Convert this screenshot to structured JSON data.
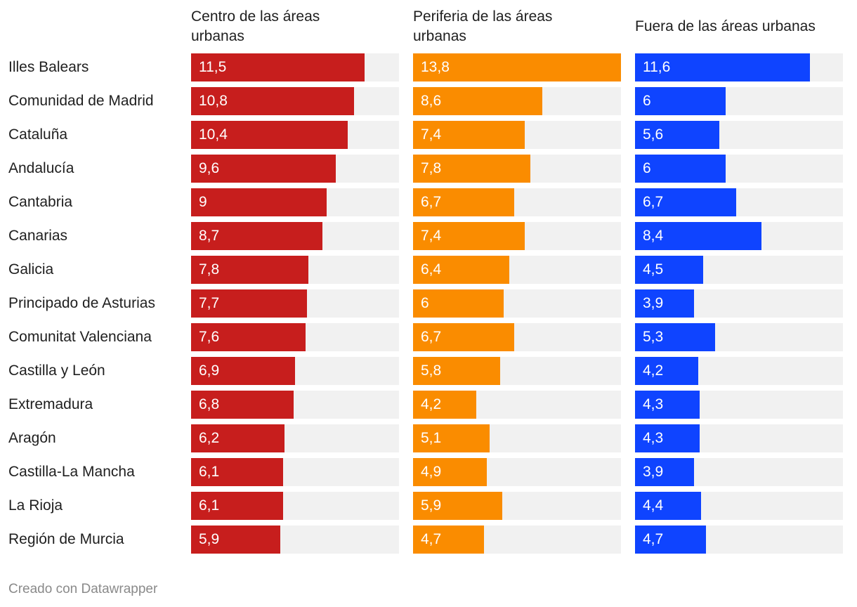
{
  "chart_data": {
    "type": "bar",
    "orientation": "horizontal",
    "categories": [
      "Illes Balears",
      "Comunidad de Madrid",
      "Cataluña",
      "Andalucía",
      "Cantabria",
      "Canarias",
      "Galicia",
      "Principado de Asturias",
      "Comunitat Valenciana",
      "Castilla y León",
      "Extremadura",
      "Aragón",
      "Castilla-La Mancha",
      "La Rioja",
      "Región de Murcia"
    ],
    "series": [
      {
        "name": "Centro de las áreas urbanas",
        "color": "#c71e1d",
        "values": [
          11.5,
          10.8,
          10.4,
          9.6,
          9,
          8.7,
          7.8,
          7.7,
          7.6,
          6.9,
          6.8,
          6.2,
          6.1,
          6.1,
          5.9
        ],
        "labels": [
          "11,5",
          "10,8",
          "10,4",
          "9,6",
          "9",
          "8,7",
          "7,8",
          "7,7",
          "7,6",
          "6,9",
          "6,8",
          "6,2",
          "6,1",
          "6,1",
          "5,9"
        ]
      },
      {
        "name": "Periferia de las áreas urbanas",
        "color": "#fa8c00",
        "values": [
          13.8,
          8.6,
          7.4,
          7.8,
          6.7,
          7.4,
          6.4,
          6,
          6.7,
          5.8,
          4.2,
          5.1,
          4.9,
          5.9,
          4.7
        ],
        "labels": [
          "13,8",
          "8,6",
          "7,4",
          "7,8",
          "6,7",
          "7,4",
          "6,4",
          "6",
          "6,7",
          "5,8",
          "4,2",
          "5,1",
          "4,9",
          "5,9",
          "4,7"
        ]
      },
      {
        "name": "Fuera de las áreas urbanas",
        "color": "#0f44ff",
        "values": [
          11.6,
          6,
          5.6,
          6,
          6.7,
          8.4,
          4.5,
          3.9,
          5.3,
          4.2,
          4.3,
          4.3,
          3.9,
          4.4,
          4.7
        ],
        "labels": [
          "11,6",
          "6",
          "5,6",
          "6",
          "6,7",
          "8,4",
          "4,5",
          "3,9",
          "5,3",
          "4,2",
          "4,3",
          "4,3",
          "3,9",
          "4,4",
          "4,7"
        ]
      }
    ],
    "xlim": [
      0,
      13.8
    ],
    "track_color": "#f1f1f1"
  },
  "footer": "Creado con Datawrapper"
}
